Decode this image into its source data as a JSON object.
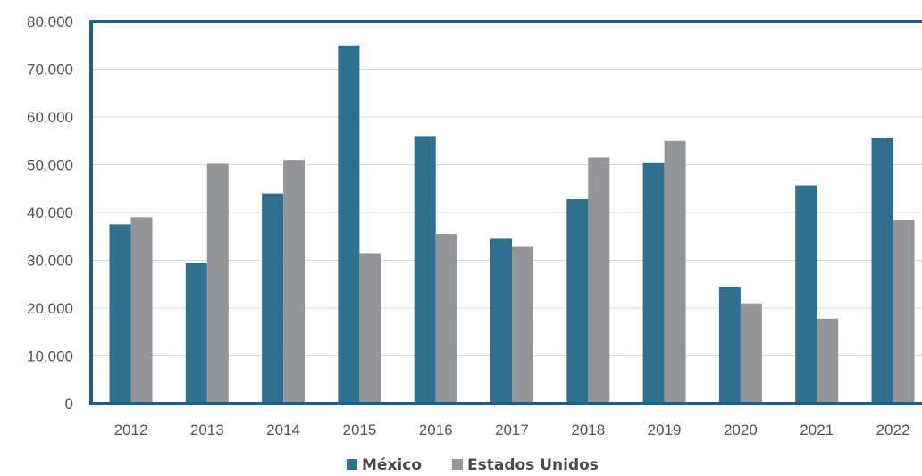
{
  "chart_data": {
    "type": "bar",
    "title": "",
    "xlabel": "",
    "ylabel": "",
    "categories": [
      "2012",
      "2013",
      "2014",
      "2015",
      "2016",
      "2017",
      "2018",
      "2019",
      "2020",
      "2021",
      "2022"
    ],
    "series": [
      {
        "name": "México",
        "color": "#30708f",
        "values": [
          37500,
          29500,
          44000,
          75000,
          56000,
          34500,
          42800,
          50500,
          24500,
          45700,
          55700
        ]
      },
      {
        "name": "Estados Unidos",
        "color": "#939598",
        "values": [
          39000,
          50200,
          51000,
          31500,
          35500,
          32800,
          51500,
          55000,
          21000,
          17800,
          38500
        ]
      }
    ],
    "ylim": [
      0,
      80000
    ],
    "yticks": [
      "0",
      "10,000",
      "20,000",
      "30,000",
      "40,000",
      "50,000",
      "60,000",
      "70,000",
      "80,000"
    ],
    "ytick_values": [
      0,
      10000,
      20000,
      30000,
      40000,
      50000,
      60000,
      70000,
      80000
    ],
    "grid": true,
    "legend_position": "bottom-center",
    "frame_color": "#1d5f86",
    "grid_color": "#d9d9d9"
  }
}
